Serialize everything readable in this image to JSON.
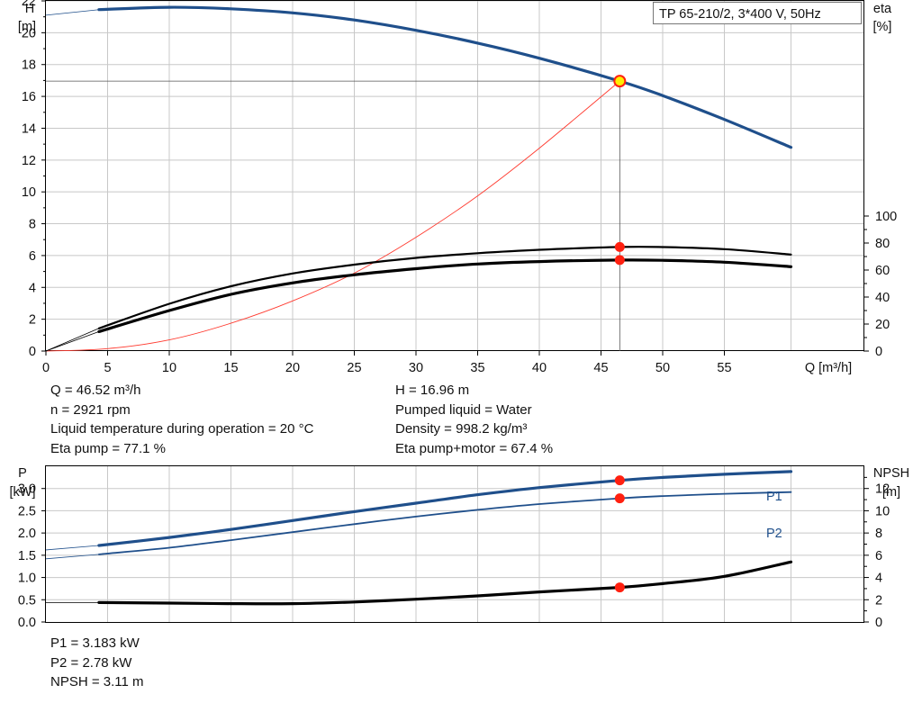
{
  "title_box": "TP 65-210/2, 3*400 V, 50Hz",
  "top_chart": {
    "left_axis_label": "H",
    "left_axis_unit": "[m]",
    "right_axis_label": "eta",
    "right_axis_unit": "[%]",
    "x_axis_label": "Q [m³/h]"
  },
  "operating_point": {
    "q": 46.52,
    "h": 16.96
  },
  "info_left": [
    "Q = 46.52 m³/h",
    "n = 2921 rpm",
    "Liquid temperature during operation = 20 °C",
    "Eta pump = 77.1 %"
  ],
  "info_right": [
    "H = 16.96 m",
    "Pumped liquid = Water",
    "Density = 998.2 kg/m³",
    "Eta pump+motor = 67.4 %"
  ],
  "bottom_chart": {
    "left_axis_label": "P",
    "left_axis_unit": "[kW]",
    "right_axis_label": "NPSH",
    "right_axis_unit": "[m]",
    "p1_label": "P1",
    "p2_label": "P2"
  },
  "info_bottom": [
    "P1 = 3.183 kW",
    "P2 = 2.78 kW",
    "NPSH = 3.11 m"
  ],
  "colors": {
    "head": "#1f4f8b",
    "system": "#ff3b30",
    "eta": "#000000",
    "point": "#ff2010",
    "duty_point": "#ffee00"
  },
  "chart_data": [
    {
      "type": "line",
      "xlabel": "Q [m³/h]",
      "ylabel": "H [m]",
      "y2label": "eta [%]",
      "xlim": [
        0,
        65
      ],
      "ylim": [
        0,
        22
      ],
      "y2lim": [
        0,
        100
      ],
      "xticks": [
        0,
        5,
        10,
        15,
        20,
        25,
        30,
        35,
        40,
        45,
        50,
        55
      ],
      "yticks": [
        0,
        2,
        4,
        6,
        8,
        10,
        12,
        14,
        16,
        18,
        20,
        22
      ],
      "y2ticks": [
        0,
        20,
        40,
        60,
        80,
        100
      ],
      "series": [
        {
          "axis": "left",
          "style": "thick-blue",
          "x": [
            0,
            4.3,
            10,
            15,
            20,
            25,
            30,
            35,
            40,
            46.52,
            50,
            55,
            60.4
          ],
          "y": [
            21.1,
            21.45,
            21.6,
            21.5,
            21.25,
            20.8,
            20.15,
            19.35,
            18.4,
            16.96,
            16.05,
            14.55,
            12.8
          ]
        },
        {
          "axis": "left",
          "style": "thin-red",
          "x": [
            0,
            5,
            10,
            15,
            20,
            25,
            30,
            35,
            40,
            46.52
          ],
          "y": [
            0,
            0.15,
            0.7,
            1.75,
            3.15,
            4.9,
            7.15,
            9.75,
            12.75,
            16.96
          ]
        },
        {
          "axis": "right",
          "style": "medium-black",
          "x": [
            0,
            4.3,
            10,
            15,
            20,
            25,
            30,
            35,
            40,
            46.52,
            50,
            55,
            60.4
          ],
          "y": [
            0,
            16.8,
            35,
            48,
            57.5,
            64,
            69,
            72.5,
            75,
            77.1,
            77,
            75.5,
            71.5
          ]
        },
        {
          "axis": "right",
          "style": "thick-black",
          "x": [
            0,
            4.3,
            10,
            15,
            20,
            25,
            30,
            35,
            40,
            46.52,
            50,
            55,
            60.4
          ],
          "y": [
            0,
            14.4,
            30,
            42,
            50.5,
            56.5,
            61,
            64.5,
            66.3,
            67.4,
            67.2,
            65.8,
            62.5
          ]
        }
      ],
      "points": [
        {
          "x": 46.52,
          "y": 16.96,
          "axis": "left",
          "kind": "duty"
        },
        {
          "x": 46.52,
          "y": 77.1,
          "axis": "right"
        },
        {
          "x": 46.52,
          "y": 67.4,
          "axis": "right"
        }
      ]
    },
    {
      "type": "line",
      "ylabel": "P [kW]",
      "y2label": "NPSH [m]",
      "xlim": [
        0,
        65
      ],
      "ylim": [
        0,
        3.5
      ],
      "y2lim": [
        0,
        14
      ],
      "yticks": [
        0.0,
        0.5,
        1.0,
        1.5,
        2.0,
        2.5,
        3.0
      ],
      "y2ticks": [
        0,
        2,
        4,
        6,
        8,
        10,
        12
      ],
      "series": [
        {
          "name": "P1",
          "axis": "left",
          "style": "thick-blue",
          "x": [
            0,
            4.3,
            10,
            15,
            20,
            25,
            30,
            35,
            40,
            46.52,
            50,
            55,
            60.4
          ],
          "y": [
            1.62,
            1.72,
            1.9,
            2.08,
            2.28,
            2.48,
            2.67,
            2.86,
            3.02,
            3.183,
            3.25,
            3.32,
            3.38
          ]
        },
        {
          "name": "P2",
          "axis": "left",
          "style": "thin-blue",
          "x": [
            0,
            4.3,
            10,
            15,
            20,
            25,
            30,
            35,
            40,
            46.52,
            50,
            55,
            60.4
          ],
          "y": [
            1.42,
            1.52,
            1.67,
            1.84,
            2.02,
            2.2,
            2.37,
            2.52,
            2.65,
            2.78,
            2.83,
            2.88,
            2.92
          ]
        },
        {
          "axis": "right",
          "style": "thick-black",
          "x": [
            0,
            4.3,
            10,
            15,
            20,
            25,
            30,
            35,
            40,
            46.52,
            50,
            55,
            60.4
          ],
          "y": [
            1.75,
            1.75,
            1.7,
            1.65,
            1.65,
            1.8,
            2.05,
            2.35,
            2.7,
            3.11,
            3.45,
            4.1,
            5.4
          ]
        }
      ],
      "points": [
        {
          "x": 46.52,
          "y": 3.183,
          "axis": "left"
        },
        {
          "x": 46.52,
          "y": 2.78,
          "axis": "left"
        },
        {
          "x": 46.52,
          "y": 3.11,
          "axis": "right"
        }
      ]
    }
  ]
}
